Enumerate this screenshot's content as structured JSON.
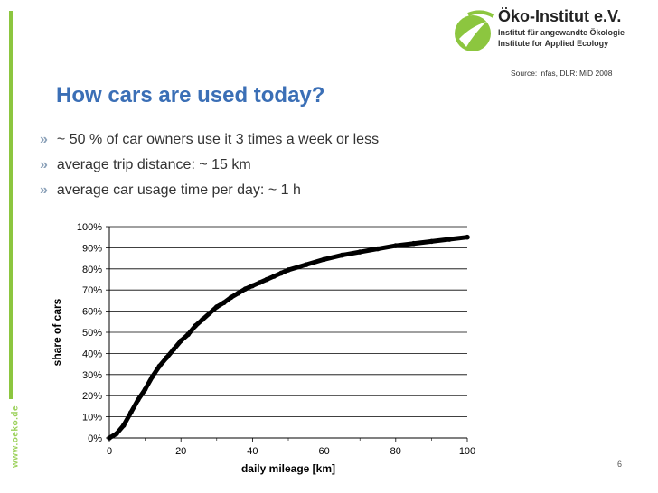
{
  "sidebar": {
    "url": "www.oeko.de"
  },
  "logo": {
    "name": "Öko-Institut e.V.",
    "line1": "Institut für angewandte Ökologie",
    "line2": "Institute for Applied Ecology",
    "brand_color": "#8cc63f"
  },
  "source": "Source: infas, DLR: MiD 2008",
  "title": "How cars are used today?",
  "bullets": [
    {
      "marker": "»",
      "text": "~ 50 % of car owners use it 3 times a week or less"
    },
    {
      "marker": "»",
      "text": "average trip distance: ~ 15 km"
    },
    {
      "marker": "»",
      "text": "average car usage time per day: ~ 1 h"
    }
  ],
  "page_number": "6",
  "chart_data": {
    "type": "line",
    "xlabel": "daily mileage [km]",
    "ylabel": "share of cars",
    "xlim": [
      0,
      100
    ],
    "ylim": [
      0,
      1
    ],
    "x_ticks": [
      "0",
      "20",
      "40",
      "60",
      "80",
      "100"
    ],
    "y_ticks": [
      "0%",
      "10%",
      "20%",
      "30%",
      "40%",
      "50%",
      "60%",
      "70%",
      "80%",
      "90%",
      "100%"
    ],
    "grid": "horizontal",
    "series": [
      {
        "color": "#000000",
        "x": [
          0,
          2,
          4,
          6,
          8,
          10,
          12,
          14,
          16,
          18,
          20,
          22,
          24,
          26,
          28,
          30,
          32,
          34,
          36,
          38,
          40,
          42,
          44,
          46,
          48,
          50,
          55,
          60,
          65,
          70,
          75,
          80,
          85,
          90,
          95,
          100
        ],
        "y": [
          0.0,
          0.02,
          0.06,
          0.12,
          0.18,
          0.23,
          0.29,
          0.34,
          0.38,
          0.42,
          0.46,
          0.49,
          0.53,
          0.56,
          0.59,
          0.62,
          0.64,
          0.665,
          0.685,
          0.705,
          0.72,
          0.735,
          0.75,
          0.765,
          0.78,
          0.795,
          0.82,
          0.845,
          0.865,
          0.88,
          0.895,
          0.91,
          0.92,
          0.93,
          0.94,
          0.95
        ]
      }
    ]
  }
}
